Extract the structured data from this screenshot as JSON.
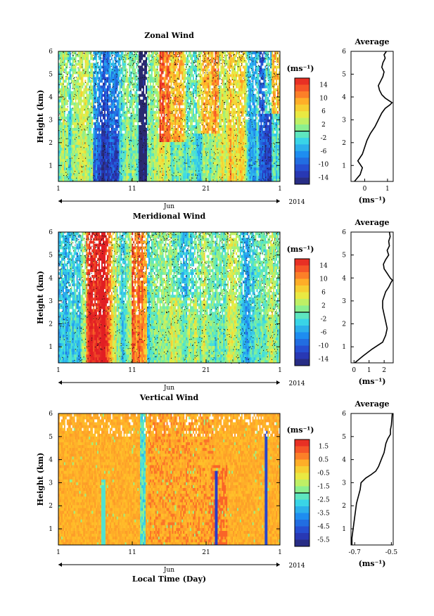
{
  "chart_data": [
    {
      "type": "heatmap",
      "title": "Zonal Wind",
      "ylabel": "Height (km)",
      "ylim": [
        0.3,
        6
      ],
      "y_ticks": [
        "1",
        "2",
        "3",
        "4",
        "5",
        "6"
      ],
      "x_ticks": [
        "1",
        "11",
        "21",
        "1"
      ],
      "month_label": "Jun",
      "year_label": "2014",
      "colorbar_unit": "(ms⁻¹)",
      "colorbar_range": [
        -15,
        15
      ],
      "colorbar_ticks": [
        "14",
        "10",
        "6",
        "2",
        "-2",
        "-6",
        "-10",
        "-14"
      ],
      "average": {
        "title": "Average",
        "xlabel": "(ms⁻¹)",
        "x_ticks": [
          "0",
          "1"
        ],
        "xlim": [
          -0.6,
          1.25
        ],
        "profile": [
          [
            -0.45,
            0.3
          ],
          [
            -0.2,
            0.6
          ],
          [
            -0.1,
            0.9
          ],
          [
            -0.3,
            1.2
          ],
          [
            -0.1,
            1.5
          ],
          [
            0.0,
            1.8
          ],
          [
            0.1,
            2.1
          ],
          [
            0.25,
            2.4
          ],
          [
            0.45,
            2.7
          ],
          [
            0.55,
            2.9
          ],
          [
            0.65,
            3.1
          ],
          [
            0.75,
            3.3
          ],
          [
            0.9,
            3.5
          ],
          [
            1.1,
            3.65
          ],
          [
            1.2,
            3.75
          ],
          [
            1.05,
            3.85
          ],
          [
            0.9,
            3.95
          ],
          [
            0.75,
            4.1
          ],
          [
            0.65,
            4.3
          ],
          [
            0.6,
            4.5
          ],
          [
            0.7,
            4.7
          ],
          [
            0.8,
            4.9
          ],
          [
            0.85,
            5.1
          ],
          [
            0.75,
            5.3
          ],
          [
            0.8,
            5.5
          ],
          [
            0.9,
            5.7
          ],
          [
            0.85,
            5.85
          ],
          [
            0.95,
            6.0
          ]
        ]
      }
    },
    {
      "type": "heatmap",
      "title": "Meridional Wind",
      "ylabel": "Height (km)",
      "ylim": [
        0.3,
        6
      ],
      "y_ticks": [
        "1",
        "2",
        "3",
        "4",
        "5",
        "6"
      ],
      "x_ticks": [
        "1",
        "11",
        "21",
        "1"
      ],
      "month_label": "Jun",
      "year_label": "2014",
      "colorbar_unit": "(ms⁻¹)",
      "colorbar_range": [
        -15,
        15
      ],
      "colorbar_ticks": [
        "14",
        "10",
        "6",
        "2",
        "-2",
        "-6",
        "-10",
        "-14"
      ],
      "average": {
        "title": "Average",
        "xlabel": "(ms⁻¹)",
        "x_ticks": [
          "0",
          "1",
          "2"
        ],
        "xlim": [
          -0.2,
          2.6
        ],
        "profile": [
          [
            0.05,
            0.3
          ],
          [
            0.6,
            0.6
          ],
          [
            1.2,
            0.9
          ],
          [
            1.9,
            1.2
          ],
          [
            2.1,
            1.5
          ],
          [
            2.2,
            1.8
          ],
          [
            2.1,
            2.1
          ],
          [
            2.0,
            2.4
          ],
          [
            1.9,
            2.7
          ],
          [
            1.9,
            3.0
          ],
          [
            2.0,
            3.2
          ],
          [
            2.1,
            3.4
          ],
          [
            2.3,
            3.6
          ],
          [
            2.45,
            3.8
          ],
          [
            2.55,
            3.9
          ],
          [
            2.4,
            4.0
          ],
          [
            2.2,
            4.2
          ],
          [
            2.0,
            4.4
          ],
          [
            1.95,
            4.6
          ],
          [
            2.1,
            4.8
          ],
          [
            2.3,
            5.0
          ],
          [
            2.2,
            5.2
          ],
          [
            2.35,
            5.4
          ],
          [
            2.3,
            5.6
          ],
          [
            2.4,
            5.8
          ],
          [
            2.35,
            6.0
          ]
        ]
      }
    },
    {
      "type": "heatmap",
      "title": "Vertical Wind",
      "ylabel": "Height (km)",
      "xlabel": "Local Time (Day)",
      "ylim": [
        0.3,
        6
      ],
      "y_ticks": [
        "1",
        "2",
        "3",
        "4",
        "5",
        "6"
      ],
      "x_ticks": [
        "1",
        "11",
        "21",
        "1"
      ],
      "month_label": "Jun",
      "year_label": "2014",
      "colorbar_unit": "(ms⁻¹)",
      "colorbar_range": [
        -6,
        2
      ],
      "colorbar_ticks": [
        "1.5",
        "0.5",
        "-0.5",
        "-1.5",
        "-2.5",
        "-3.5",
        "-4.5",
        "-5.5"
      ],
      "average": {
        "title": "Average",
        "xlabel": "(ms⁻¹)",
        "x_ticks": [
          "-0.7",
          "-0.5"
        ],
        "xlim": [
          -0.72,
          -0.49
        ],
        "profile": [
          [
            -0.715,
            0.3
          ],
          [
            -0.715,
            0.6
          ],
          [
            -0.71,
            0.9
          ],
          [
            -0.705,
            1.2
          ],
          [
            -0.7,
            1.5
          ],
          [
            -0.695,
            1.8
          ],
          [
            -0.69,
            2.1
          ],
          [
            -0.68,
            2.4
          ],
          [
            -0.67,
            2.7
          ],
          [
            -0.665,
            3.0
          ],
          [
            -0.64,
            3.2
          ],
          [
            -0.61,
            3.35
          ],
          [
            -0.585,
            3.5
          ],
          [
            -0.57,
            3.7
          ],
          [
            -0.56,
            3.9
          ],
          [
            -0.55,
            4.1
          ],
          [
            -0.54,
            4.3
          ],
          [
            -0.535,
            4.5
          ],
          [
            -0.53,
            4.7
          ],
          [
            -0.52,
            4.9
          ],
          [
            -0.505,
            5.1
          ],
          [
            -0.505,
            5.3
          ],
          [
            -0.5,
            5.5
          ],
          [
            -0.497,
            5.8
          ],
          [
            -0.495,
            6.0
          ]
        ]
      }
    }
  ]
}
